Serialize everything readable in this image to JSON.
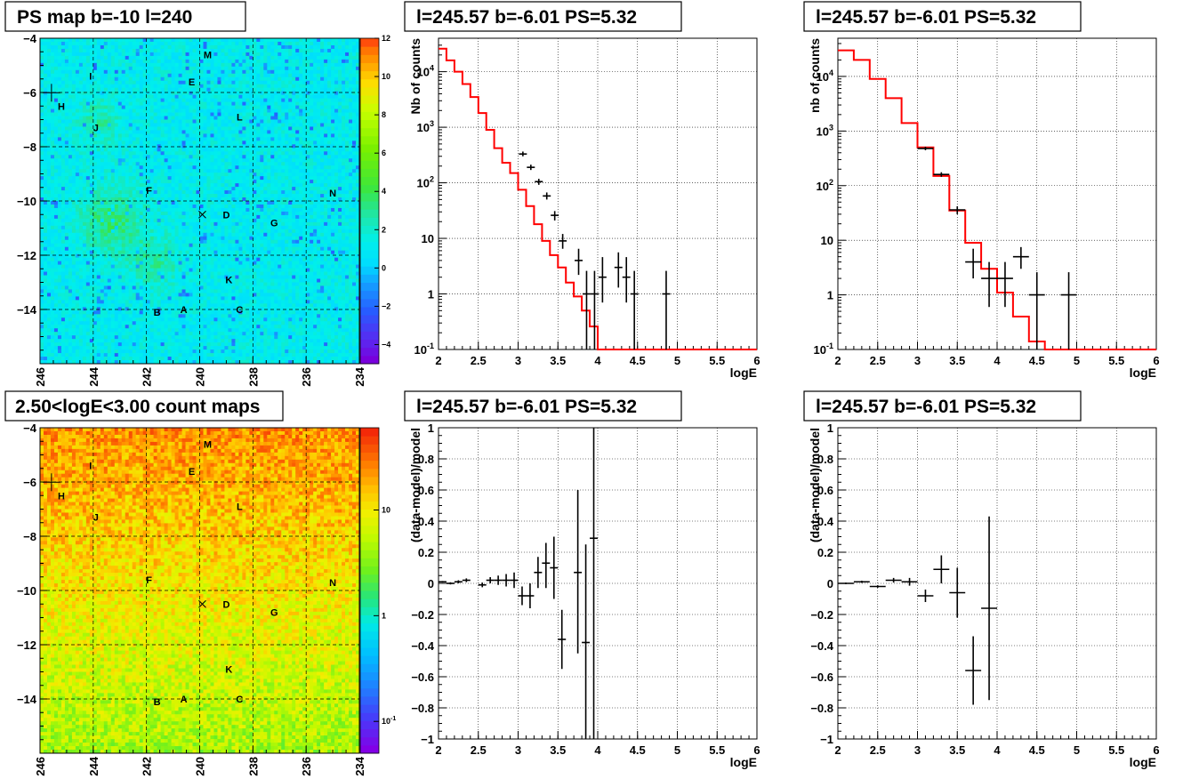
{
  "panels": [
    {
      "title": "PS map b=-10 l=240"
    },
    {
      "title": "l=245.57 b=-6.01 PS=5.32"
    },
    {
      "title": "l=245.57 b=-6.01 PS=5.32"
    },
    {
      "title": "2.50<logE<3.00 count maps"
    },
    {
      "title": "l=245.57 b=-6.01 PS=5.32"
    },
    {
      "title": "l=245.57 b=-6.01 PS=5.32"
    }
  ],
  "chart_data": [
    {
      "type": "heatmap",
      "title": "PS map b=-10 l=240",
      "xlim": [
        246,
        234
      ],
      "ylim": [
        -16,
        -4
      ],
      "x_ticks": [
        246,
        244,
        242,
        240,
        238,
        236,
        234
      ],
      "y_ticks": [
        -4,
        -6,
        -8,
        -10,
        -12,
        -14
      ],
      "colorbar": {
        "scale": "linear",
        "range": [
          -5,
          12
        ],
        "ticks": [
          12,
          10,
          8,
          6,
          4,
          2,
          0,
          -2,
          -4
        ]
      },
      "grid": true,
      "sources": [
        {
          "name": "M",
          "l": 239.7,
          "b": -4.6
        },
        {
          "name": "I",
          "l": 244.1,
          "b": -5.4
        },
        {
          "name": "E",
          "l": 240.3,
          "b": -5.6
        },
        {
          "name": "H",
          "l": 245.2,
          "b": -6.5
        },
        {
          "name": "L",
          "l": 238.5,
          "b": -6.9
        },
        {
          "name": "J",
          "l": 243.9,
          "b": -7.3
        },
        {
          "name": "F",
          "l": 241.9,
          "b": -9.6
        },
        {
          "name": "N",
          "l": 235.0,
          "b": -9.7
        },
        {
          "name": "D",
          "l": 239.0,
          "b": -10.5
        },
        {
          "name": "G",
          "l": 237.2,
          "b": -10.8
        },
        {
          "name": "K",
          "l": 238.9,
          "b": -12.9
        },
        {
          "name": "C",
          "l": 238.5,
          "b": -14.0
        },
        {
          "name": "B",
          "l": 241.6,
          "b": -14.1
        },
        {
          "name": "A",
          "l": 240.6,
          "b": -14.0
        }
      ],
      "crosshair": {
        "l": 245.57,
        "b": -6.01
      },
      "target_marker": {
        "l": 239.9,
        "b": -10.5
      }
    },
    {
      "type": "line",
      "title": "l=245.57 b=-6.01 PS=5.32",
      "xlabel": "logE",
      "ylabel": "Nb of counts",
      "xlim": [
        2,
        6
      ],
      "ylim": [
        0.1,
        40000
      ],
      "ylog": true,
      "x_ticks": [
        2,
        2.5,
        3,
        3.5,
        4,
        4.5,
        5,
        5.5,
        6
      ],
      "y_ticks": [
        {
          "v": 0.1,
          "label": "10",
          "sup": "-1"
        },
        {
          "v": 1,
          "label": "1",
          "sup": ""
        },
        {
          "v": 10,
          "label": "10",
          "sup": ""
        },
        {
          "v": 100,
          "label": "10",
          "sup": "2"
        },
        {
          "v": 1000,
          "label": "10",
          "sup": "3"
        },
        {
          "v": 10000,
          "label": "10",
          "sup": "4"
        }
      ],
      "grid": true,
      "model": {
        "color": "#ff0000",
        "bin_width": 0.1,
        "starts": [
          2.0,
          2.1,
          2.2,
          2.3,
          2.4,
          2.5,
          2.6,
          2.7,
          2.8,
          2.9,
          3.0,
          3.1,
          3.2,
          3.3,
          3.4,
          3.5,
          3.6,
          3.7,
          3.8,
          3.9,
          4.0,
          4.1,
          4.2,
          4.3,
          4.4,
          4.5,
          4.6,
          4.7,
          4.8,
          4.9,
          5.0,
          5.1,
          5.2,
          5.3,
          5.4,
          5.5,
          5.6,
          5.7,
          5.8,
          5.9
        ],
        "values": [
          26000,
          16000,
          10000,
          6000,
          3500,
          1800,
          900,
          420,
          230,
          150,
          75,
          38,
          18,
          9,
          5,
          3,
          1.6,
          0.9,
          0.5,
          0.26,
          0.1,
          0.1,
          0.1,
          0.1,
          0.1,
          0.1,
          0.1,
          0.1,
          0.1,
          0.1,
          0.1,
          0.1,
          0.1,
          0.1,
          0.1,
          0.1,
          0.1,
          0.1,
          0.1,
          0.1
        ]
      },
      "data": [
        {
          "x": 3.06,
          "xerr": 0.05,
          "y": 330,
          "ylo": 300,
          "yhi": 365
        },
        {
          "x": 3.16,
          "xerr": 0.05,
          "y": 190,
          "ylo": 170,
          "yhi": 212
        },
        {
          "x": 3.26,
          "xerr": 0.05,
          "y": 105,
          "ylo": 92,
          "yhi": 118
        },
        {
          "x": 3.36,
          "xerr": 0.05,
          "y": 58,
          "ylo": 50,
          "yhi": 67
        },
        {
          "x": 3.46,
          "xerr": 0.05,
          "y": 26,
          "ylo": 21,
          "yhi": 31
        },
        {
          "x": 3.56,
          "xerr": 0.05,
          "y": 9,
          "ylo": 6.5,
          "yhi": 12
        },
        {
          "x": 3.76,
          "xerr": 0.05,
          "y": 4,
          "ylo": 2.2,
          "yhi": 6.5
        },
        {
          "x": 3.86,
          "xerr": 0.05,
          "y": 1,
          "ylo": 0.1,
          "yhi": 2.6
        },
        {
          "x": 3.96,
          "xerr": 0.05,
          "y": 1,
          "ylo": 0.1,
          "yhi": 2.6
        },
        {
          "x": 4.06,
          "xerr": 0.05,
          "y": 2,
          "ylo": 0.7,
          "yhi": 4.6
        },
        {
          "x": 4.26,
          "xerr": 0.05,
          "y": 3,
          "ylo": 1.3,
          "yhi": 5.6
        },
        {
          "x": 4.36,
          "xerr": 0.05,
          "y": 2,
          "ylo": 0.7,
          "yhi": 4.6
        },
        {
          "x": 4.46,
          "xerr": 0.05,
          "y": 1,
          "ylo": 0.1,
          "yhi": 2.6
        },
        {
          "x": 4.86,
          "xerr": 0.05,
          "y": 1,
          "ylo": 0.1,
          "yhi": 2.6
        }
      ]
    },
    {
      "type": "line",
      "title": "l=245.57 b=-6.01 PS=5.32",
      "xlabel": "logE",
      "ylabel": "nb of counts",
      "xlim": [
        2,
        6
      ],
      "ylim": [
        0.1,
        50000
      ],
      "ylog": true,
      "x_ticks": [
        2,
        2.5,
        3,
        3.5,
        4,
        4.5,
        5,
        5.5,
        6
      ],
      "y_ticks": [
        {
          "v": 0.1,
          "label": "10",
          "sup": "-1"
        },
        {
          "v": 1,
          "label": "1",
          "sup": ""
        },
        {
          "v": 10,
          "label": "10",
          "sup": ""
        },
        {
          "v": 100,
          "label": "10",
          "sup": "2"
        },
        {
          "v": 1000,
          "label": "10",
          "sup": "3"
        },
        {
          "v": 10000,
          "label": "10",
          "sup": "4"
        }
      ],
      "grid": true,
      "model": {
        "color": "#ff0000",
        "bin_width": 0.2,
        "starts": [
          2.0,
          2.2,
          2.4,
          2.6,
          2.8,
          3.0,
          3.2,
          3.4,
          3.6,
          3.8,
          4.0,
          4.2,
          4.4,
          4.6,
          4.8,
          5.0,
          5.2,
          5.4,
          5.6,
          5.8
        ],
        "values": [
          30000,
          20000,
          9000,
          4000,
          1400,
          500,
          150,
          35,
          9,
          3,
          1.1,
          0.4,
          0.14,
          0.1,
          0.1,
          0.1,
          0.1,
          0.1,
          0.1,
          0.1
        ]
      },
      "data": [
        {
          "x": 3.1,
          "xerr": 0.1,
          "y": 480,
          "ylo": 445,
          "yhi": 515
        },
        {
          "x": 3.3,
          "xerr": 0.1,
          "y": 160,
          "ylo": 145,
          "yhi": 176
        },
        {
          "x": 3.5,
          "xerr": 0.1,
          "y": 36,
          "ylo": 30,
          "yhi": 42
        },
        {
          "x": 3.7,
          "xerr": 0.1,
          "y": 4,
          "ylo": 2,
          "yhi": 7
        },
        {
          "x": 3.9,
          "xerr": 0.1,
          "y": 2,
          "ylo": 0.6,
          "yhi": 4
        },
        {
          "x": 4.1,
          "xerr": 0.1,
          "y": 2,
          "ylo": 0.6,
          "yhi": 4
        },
        {
          "x": 4.3,
          "xerr": 0.1,
          "y": 5,
          "ylo": 3,
          "yhi": 7.5
        },
        {
          "x": 4.5,
          "xerr": 0.1,
          "y": 1,
          "ylo": 0.1,
          "yhi": 2.6
        },
        {
          "x": 4.9,
          "xerr": 0.1,
          "y": 1,
          "ylo": 0.1,
          "yhi": 2.6
        }
      ]
    },
    {
      "type": "heatmap",
      "title": "2.50<logE<3.00 count maps",
      "xlim": [
        246,
        234
      ],
      "ylim": [
        -16,
        -4
      ],
      "x_ticks": [
        246,
        244,
        242,
        240,
        238,
        236,
        234
      ],
      "y_ticks": [
        -4,
        -6,
        -8,
        -10,
        -12,
        -14
      ],
      "colorbar": {
        "scale": "log",
        "range": [
          0.05,
          60
        ],
        "ticks": [
          {
            "v": 10,
            "label": "10",
            "sup": ""
          },
          {
            "v": 1,
            "label": "1",
            "sup": ""
          },
          {
            "v": 0.1,
            "label": "10",
            "sup": "-1"
          }
        ]
      },
      "grid": true,
      "sources": [
        {
          "name": "M",
          "l": 239.7,
          "b": -4.6
        },
        {
          "name": "I",
          "l": 244.1,
          "b": -5.4
        },
        {
          "name": "E",
          "l": 240.3,
          "b": -5.6
        },
        {
          "name": "H",
          "l": 245.2,
          "b": -6.5
        },
        {
          "name": "L",
          "l": 238.5,
          "b": -6.9
        },
        {
          "name": "J",
          "l": 243.9,
          "b": -7.3
        },
        {
          "name": "F",
          "l": 241.9,
          "b": -9.6
        },
        {
          "name": "N",
          "l": 235.0,
          "b": -9.7
        },
        {
          "name": "D",
          "l": 239.0,
          "b": -10.5
        },
        {
          "name": "G",
          "l": 237.2,
          "b": -10.8
        },
        {
          "name": "K",
          "l": 238.9,
          "b": -12.9
        },
        {
          "name": "C",
          "l": 238.5,
          "b": -14.0
        },
        {
          "name": "B",
          "l": 241.6,
          "b": -14.1
        },
        {
          "name": "A",
          "l": 240.6,
          "b": -14.0
        }
      ],
      "crosshair": {
        "l": 245.57,
        "b": -6.01
      },
      "target_marker": {
        "l": 239.9,
        "b": -10.5
      }
    },
    {
      "type": "scatter",
      "title": "l=245.57 b=-6.01 PS=5.32",
      "xlabel": "logE",
      "ylabel": "(data-model)/model",
      "xlim": [
        2,
        6
      ],
      "ylim": [
        -1,
        1
      ],
      "x_ticks": [
        2,
        2.5,
        3,
        3.5,
        4,
        4.5,
        5,
        5.5,
        6
      ],
      "y_ticks": [
        -1,
        -0.8,
        -0.6,
        -0.4,
        -0.2,
        0,
        0.2,
        0.4,
        0.6,
        0.8,
        1
      ],
      "grid": true,
      "data": [
        {
          "x": 2.05,
          "xerr": 0.05,
          "y": 0.01,
          "ylo": 0.005,
          "yhi": 0.015
        },
        {
          "x": 2.15,
          "xerr": 0.05,
          "y": 0.0,
          "ylo": -0.007,
          "yhi": 0.007
        },
        {
          "x": 2.25,
          "xerr": 0.05,
          "y": 0.01,
          "ylo": 0.0,
          "yhi": 0.02
        },
        {
          "x": 2.35,
          "xerr": 0.05,
          "y": 0.02,
          "ylo": 0.008,
          "yhi": 0.032
        },
        {
          "x": 2.55,
          "xerr": 0.05,
          "y": -0.01,
          "ylo": -0.025,
          "yhi": 0.005
        },
        {
          "x": 2.65,
          "xerr": 0.05,
          "y": 0.02,
          "ylo": 0.0,
          "yhi": 0.04
        },
        {
          "x": 2.75,
          "xerr": 0.05,
          "y": 0.02,
          "ylo": -0.01,
          "yhi": 0.05
        },
        {
          "x": 2.85,
          "xerr": 0.05,
          "y": 0.02,
          "ylo": -0.02,
          "yhi": 0.06
        },
        {
          "x": 2.95,
          "xerr": 0.05,
          "y": 0.02,
          "ylo": -0.03,
          "yhi": 0.07
        },
        {
          "x": 3.05,
          "xerr": 0.05,
          "y": -0.08,
          "ylo": -0.14,
          "yhi": -0.02
        },
        {
          "x": 3.15,
          "xerr": 0.05,
          "y": -0.08,
          "ylo": -0.16,
          "yhi": 0.0
        },
        {
          "x": 3.25,
          "xerr": 0.05,
          "y": 0.07,
          "ylo": -0.03,
          "yhi": 0.17
        },
        {
          "x": 3.35,
          "xerr": 0.05,
          "y": 0.13,
          "ylo": -0.03,
          "yhi": 0.26
        },
        {
          "x": 3.45,
          "xerr": 0.05,
          "y": 0.1,
          "ylo": -0.1,
          "yhi": 0.3
        },
        {
          "x": 3.55,
          "xerr": 0.05,
          "y": -0.36,
          "ylo": -0.55,
          "yhi": -0.17
        },
        {
          "x": 3.75,
          "xerr": 0.05,
          "y": 0.07,
          "ylo": -0.45,
          "yhi": 0.6
        },
        {
          "x": 3.85,
          "xerr": 0.05,
          "y": -0.38,
          "ylo": -1.0,
          "yhi": 0.25
        },
        {
          "x": 3.95,
          "xerr": 0.05,
          "y": 0.29,
          "ylo": -1.0,
          "yhi": 1.0
        }
      ]
    },
    {
      "type": "scatter",
      "title": "l=245.57 b=-6.01 PS=5.32",
      "xlabel": "logE",
      "ylabel": "(data-model)/model",
      "xlim": [
        2,
        6
      ],
      "ylim": [
        -1,
        1
      ],
      "x_ticks": [
        2,
        2.5,
        3,
        3.5,
        4,
        4.5,
        5,
        5.5,
        6
      ],
      "y_ticks": [
        -1,
        -0.8,
        -0.6,
        -0.4,
        -0.2,
        0,
        0.2,
        0.4,
        0.6,
        0.8,
        1
      ],
      "grid": true,
      "data": [
        {
          "x": 2.1,
          "xerr": 0.1,
          "y": 0.0,
          "ylo": -0.005,
          "yhi": 0.005
        },
        {
          "x": 2.3,
          "xerr": 0.1,
          "y": 0.01,
          "ylo": 0.003,
          "yhi": 0.017
        },
        {
          "x": 2.5,
          "xerr": 0.1,
          "y": -0.02,
          "ylo": -0.028,
          "yhi": -0.012
        },
        {
          "x": 2.7,
          "xerr": 0.1,
          "y": 0.02,
          "ylo": 0.005,
          "yhi": 0.035
        },
        {
          "x": 2.9,
          "xerr": 0.1,
          "y": 0.01,
          "ylo": -0.015,
          "yhi": 0.035
        },
        {
          "x": 3.1,
          "xerr": 0.1,
          "y": -0.08,
          "ylo": -0.12,
          "yhi": -0.04
        },
        {
          "x": 3.3,
          "xerr": 0.1,
          "y": 0.09,
          "ylo": 0.0,
          "yhi": 0.18
        },
        {
          "x": 3.5,
          "xerr": 0.1,
          "y": -0.06,
          "ylo": -0.22,
          "yhi": 0.1
        },
        {
          "x": 3.7,
          "xerr": 0.1,
          "y": -0.56,
          "ylo": -0.78,
          "yhi": -0.34
        },
        {
          "x": 3.9,
          "xerr": 0.1,
          "y": -0.16,
          "ylo": -0.75,
          "yhi": 0.43
        }
      ]
    }
  ]
}
